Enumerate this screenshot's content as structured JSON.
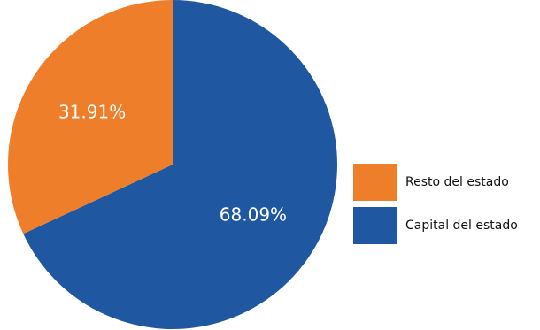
{
  "chart_data": {
    "type": "pie",
    "title": "",
    "slices": [
      {
        "label": "Capital del estado",
        "value": 68.09,
        "display": "68.09%",
        "color": "#1f57a0"
      },
      {
        "label": "Resto del estado",
        "value": 31.91,
        "display": "31.91%",
        "color": "#ef7e2a"
      }
    ],
    "legend": {
      "placement": "right",
      "entries": [
        {
          "label": "Resto del estado",
          "color": "#ef7e2a"
        },
        {
          "label": "Capital del estado",
          "color": "#1f57a0"
        }
      ]
    }
  }
}
